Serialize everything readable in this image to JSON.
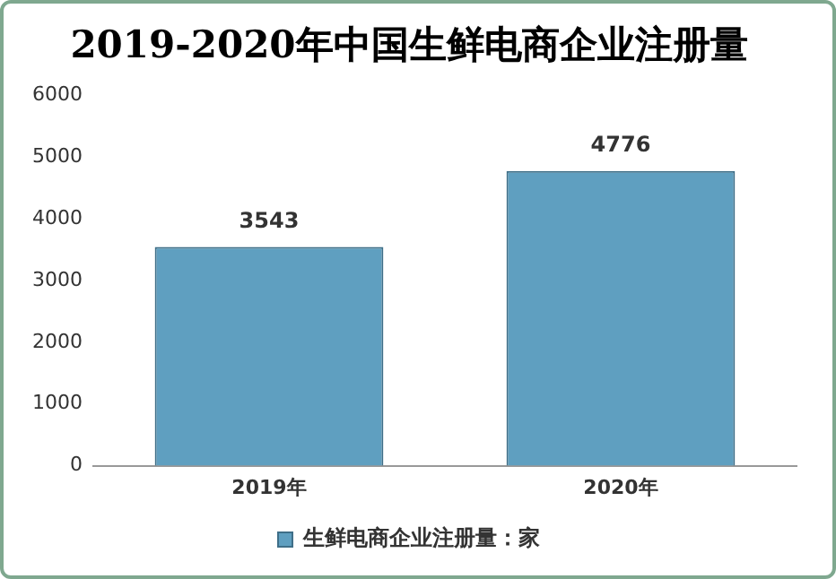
{
  "chart_data": {
    "type": "bar",
    "title": "2019-2020年中国生鲜电商企业注册量",
    "categories": [
      "2019年",
      "2020年"
    ],
    "series": [
      {
        "name": "生鲜电商企业注册量：家",
        "color": "#5f9fc0",
        "values": [
          3543,
          4776
        ]
      }
    ],
    "ylim": [
      0,
      6000
    ],
    "yticks": [
      0,
      1000,
      2000,
      3000,
      4000,
      5000,
      6000
    ],
    "grid": false,
    "legend": "bottom",
    "data_labels": true
  }
}
